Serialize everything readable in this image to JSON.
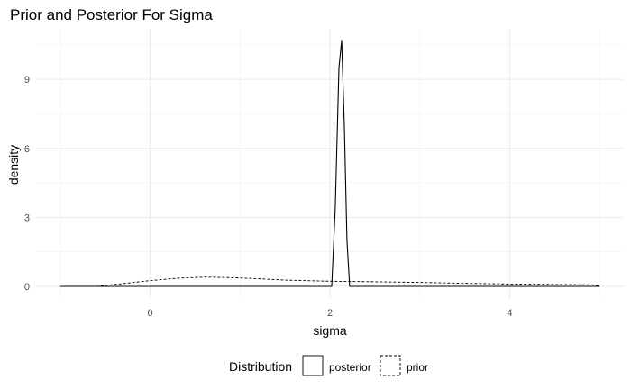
{
  "chart_data": {
    "type": "line",
    "title": "Prior and Posterior For Sigma",
    "xlabel": "sigma",
    "ylabel": "density",
    "xlim": [
      -1,
      5
    ],
    "ylim": [
      0,
      11
    ],
    "x_ticks": [
      0,
      2,
      4
    ],
    "y_ticks": [
      0,
      3,
      6,
      9
    ],
    "grid": true,
    "legend": {
      "title": "Distribution",
      "position": "bottom",
      "entries": [
        "posterior",
        "prior"
      ]
    },
    "series": [
      {
        "name": "posterior",
        "line_style": "solid",
        "color": "#000000",
        "x": [
          -1.0,
          2.02,
          2.06,
          2.1,
          2.13,
          2.16,
          2.19,
          2.22,
          5.0
        ],
        "y": [
          0,
          0,
          3.5,
          9.5,
          10.7,
          7.0,
          2.0,
          0,
          0
        ]
      },
      {
        "name": "prior",
        "line_style": "dashed",
        "color": "#000000",
        "x": [
          -1.0,
          -0.6,
          -0.3,
          0.0,
          0.3,
          0.6,
          0.9,
          1.2,
          1.5,
          2.0,
          2.5,
          3.0,
          3.5,
          4.0,
          4.5,
          4.95,
          5.0
        ],
        "y": [
          0,
          0.0,
          0.12,
          0.25,
          0.35,
          0.4,
          0.38,
          0.33,
          0.27,
          0.22,
          0.2,
          0.17,
          0.13,
          0.1,
          0.08,
          0.06,
          0
        ]
      }
    ]
  }
}
